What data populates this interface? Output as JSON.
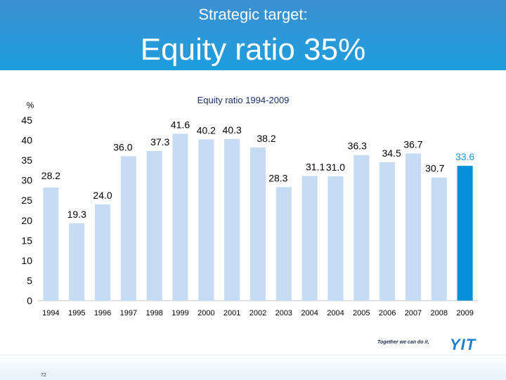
{
  "header": {
    "supertitle": "Strategic target:",
    "title": "Equity ratio 35%"
  },
  "branding": {
    "slogan": "Together we can do it.",
    "logo": "YIT"
  },
  "page_number": "72",
  "colors": {
    "bar": "#c6dcf2",
    "highlight_bar": "#0a90d8",
    "highlight_label": "#1a9ad9",
    "header": "#2b98d9"
  },
  "chart_data": {
    "type": "bar",
    "title": "Equity ratio 1994-2009",
    "ylabel": "%",
    "xlabel": "",
    "ylim": [
      0,
      45
    ],
    "yticks": [
      0,
      5,
      10,
      15,
      20,
      25,
      30,
      35,
      40,
      45
    ],
    "grid": false,
    "categories": [
      "1994",
      "1995",
      "1996",
      "1997",
      "1998",
      "1999",
      "2000",
      "2001",
      "2002",
      "2003",
      "2004",
      "2004",
      "2005",
      "2006",
      "2007",
      "2008",
      "2009"
    ],
    "values": [
      28.2,
      19.3,
      24.0,
      36.0,
      37.3,
      41.6,
      40.2,
      40.3,
      38.2,
      28.3,
      31.1,
      31.0,
      36.3,
      34.5,
      36.7,
      30.7,
      33.6
    ],
    "labels": [
      "28.2",
      "19.3",
      "24.0",
      "36.0",
      "37.3",
      "41.6",
      "40.2",
      "40.3",
      "38.2",
      "28.3",
      "31.1",
      "31.0",
      "36.3",
      "34.5",
      "36.7",
      "30.7",
      "33.6"
    ],
    "highlight_index": 16
  }
}
